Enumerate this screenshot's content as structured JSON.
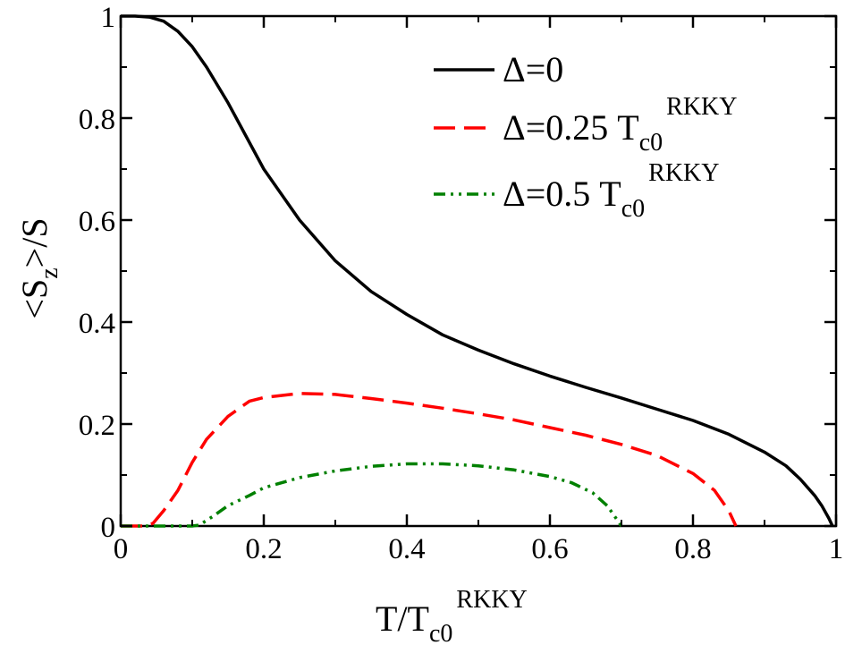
{
  "chart_data": {
    "type": "line",
    "xlabel": {
      "main": "T/T",
      "sub": "c0",
      "sup": "RKKY"
    },
    "ylabel": {
      "pre": "<S",
      "sub": "z",
      "post": ">/S"
    },
    "xlim": [
      0,
      1
    ],
    "ylim": [
      0,
      1
    ],
    "xticks": [
      0,
      0.2,
      0.4,
      0.6,
      0.8,
      1
    ],
    "xtick_labels": [
      "0",
      "0.2",
      "0.4",
      "0.6",
      "0.8",
      "1"
    ],
    "yticks": [
      0,
      0.2,
      0.4,
      0.6,
      0.8,
      1
    ],
    "ytick_labels": [
      "0",
      "0.2",
      "0.4",
      "0.6",
      "0.8",
      "1"
    ],
    "legend_position": "top-right",
    "series": [
      {
        "name": "Δ=0",
        "legend": {
          "main": "Δ=0",
          "sub": "",
          "sup": ""
        },
        "color": "#000000",
        "style": "solid",
        "x": [
          0,
          0.02,
          0.04,
          0.06,
          0.08,
          0.1,
          0.12,
          0.15,
          0.2,
          0.25,
          0.3,
          0.35,
          0.4,
          0.45,
          0.5,
          0.55,
          0.6,
          0.65,
          0.7,
          0.75,
          0.8,
          0.85,
          0.9,
          0.93,
          0.95,
          0.97,
          0.98,
          0.99,
          0.995
        ],
        "y": [
          1.0,
          1.0,
          0.998,
          0.99,
          0.97,
          0.94,
          0.9,
          0.83,
          0.7,
          0.6,
          0.52,
          0.46,
          0.415,
          0.375,
          0.345,
          0.318,
          0.294,
          0.272,
          0.251,
          0.229,
          0.207,
          0.18,
          0.145,
          0.118,
          0.092,
          0.06,
          0.04,
          0.015,
          0.0
        ]
      },
      {
        "name": "Δ=0.25 T_c0^RKKY",
        "legend": {
          "main": "Δ=0.25 T",
          "sub": "c0",
          "sup": "RKKY"
        },
        "color": "#ff0000",
        "style": "dashed",
        "x": [
          0,
          0.03,
          0.045,
          0.06,
          0.08,
          0.1,
          0.12,
          0.15,
          0.18,
          0.2,
          0.25,
          0.3,
          0.35,
          0.4,
          0.45,
          0.5,
          0.55,
          0.6,
          0.65,
          0.7,
          0.75,
          0.8,
          0.83,
          0.85,
          0.86
        ],
        "y": [
          0,
          0,
          0.005,
          0.03,
          0.07,
          0.125,
          0.17,
          0.215,
          0.245,
          0.252,
          0.26,
          0.258,
          0.25,
          0.241,
          0.231,
          0.22,
          0.208,
          0.193,
          0.178,
          0.16,
          0.138,
          0.103,
          0.07,
          0.03,
          0.0
        ]
      },
      {
        "name": "Δ=0.5 T_c0^RKKY",
        "legend": {
          "main": "Δ=0.5 T",
          "sub": "c0",
          "sup": "RKKY"
        },
        "color": "#008000",
        "style": "dash-dot-dot",
        "x": [
          0,
          0.1,
          0.11,
          0.13,
          0.15,
          0.18,
          0.2,
          0.25,
          0.3,
          0.35,
          0.4,
          0.45,
          0.5,
          0.55,
          0.6,
          0.63,
          0.66,
          0.68,
          0.69,
          0.7
        ],
        "y": [
          0,
          0,
          0.002,
          0.02,
          0.04,
          0.06,
          0.075,
          0.095,
          0.108,
          0.117,
          0.122,
          0.122,
          0.118,
          0.11,
          0.097,
          0.085,
          0.065,
          0.04,
          0.02,
          0.0
        ]
      }
    ]
  }
}
